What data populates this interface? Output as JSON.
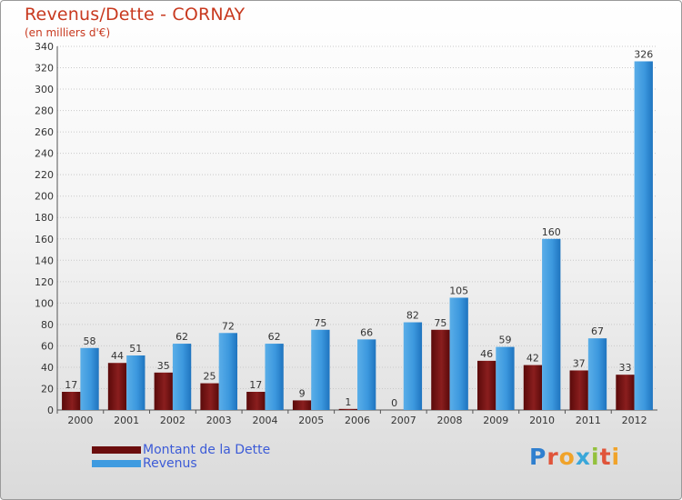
{
  "chart_data": {
    "type": "bar",
    "title": "Revenus/Dette - CORNAY",
    "subtitle": "(en milliers d'€)",
    "categories": [
      "2000",
      "2001",
      "2002",
      "2003",
      "2004",
      "2005",
      "2006",
      "2007",
      "2008",
      "2009",
      "2010",
      "2011",
      "2012"
    ],
    "series": [
      {
        "name": "Montant de la Dette",
        "color": "#6b0d0d",
        "values": [
          17,
          44,
          35,
          25,
          17,
          9,
          1,
          0,
          75,
          46,
          42,
          37,
          33
        ]
      },
      {
        "name": "Revenus",
        "color": "#3f9be0",
        "values": [
          58,
          51,
          62,
          72,
          62,
          75,
          66,
          82,
          105,
          59,
          160,
          67,
          326
        ]
      }
    ],
    "ylim": [
      0,
      340
    ],
    "yticks": [
      0,
      20,
      40,
      60,
      80,
      100,
      120,
      140,
      160,
      180,
      200,
      220,
      240,
      260,
      280,
      300,
      320,
      340
    ],
    "grid": true,
    "legend": "bottom-left"
  },
  "logo": [
    "P",
    "r",
    "o",
    "x",
    "i",
    "t",
    "i"
  ]
}
